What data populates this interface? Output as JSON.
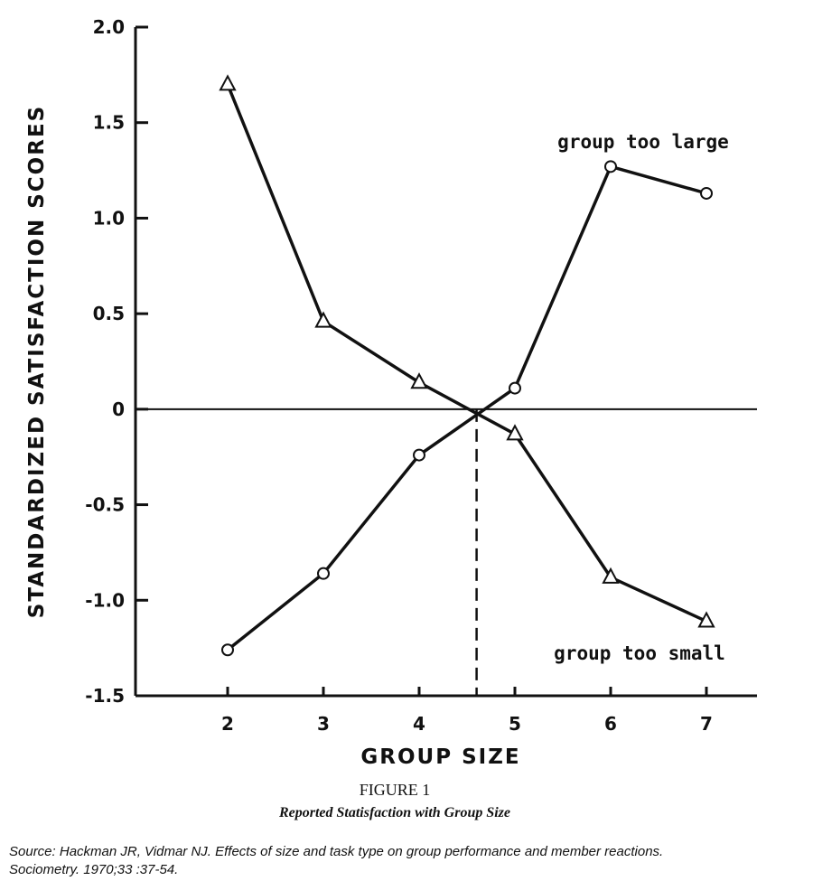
{
  "chart_data": {
    "type": "line",
    "title": "",
    "xlabel": "GROUP SIZE",
    "ylabel": "STANDARDIZED SATISFACTION SCORES",
    "xlim": [
      1,
      7.5
    ],
    "ylim": [
      -1.5,
      2.0
    ],
    "x_ticks": [
      2,
      3,
      4,
      5,
      6,
      7
    ],
    "x_tick_labels": [
      "2",
      "3",
      "4",
      "5",
      "6",
      "7"
    ],
    "y_ticks": [
      2.0,
      1.5,
      1.0,
      0.5,
      0,
      -0.5,
      -1.0,
      -1.5
    ],
    "y_tick_labels": [
      "2.0",
      "1.5",
      "1.0",
      "0.5",
      "0",
      "-0.5",
      "-1.0",
      "-1.5"
    ],
    "grid": false,
    "zero_line": true,
    "reference_line_x": 4.6,
    "series": [
      {
        "name": "group too small",
        "marker": "triangle",
        "x": [
          2,
          3,
          4,
          5,
          6,
          7
        ],
        "values": [
          1.7,
          0.46,
          0.14,
          -0.13,
          -0.88,
          -1.11
        ]
      },
      {
        "name": "group too large",
        "marker": "circle",
        "x": [
          2,
          3,
          4,
          5,
          6,
          7
        ],
        "values": [
          -1.26,
          -0.86,
          -0.24,
          0.11,
          1.27,
          1.13
        ]
      }
    ],
    "annotations": [
      "group too large",
      "group too small"
    ]
  },
  "caption": {
    "figure": "FIGURE 1",
    "subtitle": "Reported Statisfaction with Group Size"
  },
  "source": {
    "line1": "Source: Hackman JR, Vidmar NJ. Effects of size and task type on group performance and member reactions.",
    "line2": "Sociometry. 1970;33 :37-54."
  }
}
